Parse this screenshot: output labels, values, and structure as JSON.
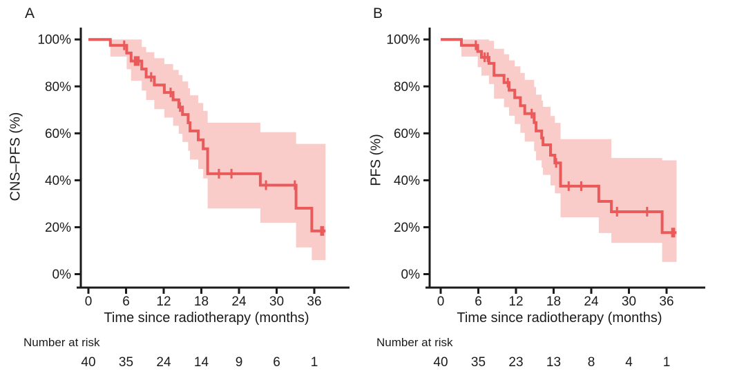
{
  "figure": {
    "background": "#ffffff",
    "panels": [
      {
        "label": "A",
        "ylabel": "CNS–PFS (%)",
        "xlabel": "Time since radiotherapy (months)",
        "risk_label": "Number at risk"
      },
      {
        "label": "B",
        "ylabel": "PFS (%)",
        "xlabel": "Time since radiotherapy (months)",
        "risk_label": "Number at risk"
      }
    ]
  },
  "chart_data": [
    {
      "type": "line",
      "subtype": "kaplan_meier_step_with_confidence_band",
      "panel": "A",
      "title": "",
      "xlabel": "Time since radiotherapy (months)",
      "ylabel": "CNS–PFS (%)",
      "xlim": [
        0,
        38
      ],
      "ylim": [
        0,
        100
      ],
      "grid": false,
      "legend": "none",
      "x_ticks": [
        0,
        6,
        12,
        18,
        24,
        30,
        36
      ],
      "y_tick_values": [
        0,
        20,
        40,
        60,
        80,
        100
      ],
      "y_tick_labels": [
        "0%",
        "20%",
        "40%",
        "60%",
        "80%",
        "100%"
      ],
      "line_color": "#e95a5b",
      "band_color": "#f9cbc9",
      "axis_color": "#1a1a1a",
      "end_time": 37.8,
      "steps": [
        {
          "t": 0,
          "s": 100,
          "lo": 100,
          "hi": 100
        },
        {
          "t": 3.5,
          "s": 97.5,
          "lo": 92.7,
          "hi": 100
        },
        {
          "t": 6.1,
          "s": 94.2,
          "lo": 87.3,
          "hi": 100
        },
        {
          "t": 6.8,
          "s": 90.8,
          "lo": 82.4,
          "hi": 100
        },
        {
          "t": 8.5,
          "s": 87.4,
          "lo": 78.2,
          "hi": 96.8
        },
        {
          "t": 9.2,
          "s": 84.0,
          "lo": 74.2,
          "hi": 94.6
        },
        {
          "t": 10.5,
          "s": 80.6,
          "lo": 70.3,
          "hi": 92.0
        },
        {
          "t": 12.1,
          "s": 77.4,
          "lo": 66.7,
          "hi": 89.5
        },
        {
          "t": 13.5,
          "s": 74.3,
          "lo": 63.2,
          "hi": 87.0
        },
        {
          "t": 14.4,
          "s": 71.2,
          "lo": 59.8,
          "hi": 84.8
        },
        {
          "t": 15.0,
          "s": 68.0,
          "lo": 56.3,
          "hi": 82.1
        },
        {
          "t": 15.9,
          "s": 64.5,
          "lo": 52.5,
          "hi": 79.2
        },
        {
          "t": 16.2,
          "s": 61.0,
          "lo": 48.8,
          "hi": 76.2
        },
        {
          "t": 17.5,
          "s": 57.2,
          "lo": 44.8,
          "hi": 72.9
        },
        {
          "t": 18.3,
          "s": 53.4,
          "lo": 40.8,
          "hi": 69.6
        },
        {
          "t": 19.0,
          "s": 42.8,
          "lo": 28.0,
          "hi": 64.5
        },
        {
          "t": 27.4,
          "s": 37.9,
          "lo": 21.9,
          "hi": 60.5
        },
        {
          "t": 33.1,
          "s": 28.1,
          "lo": 11.4,
          "hi": 55.5
        },
        {
          "t": 35.6,
          "s": 18.4,
          "lo": 6.0,
          "hi": 55.5
        }
      ],
      "censors": [
        {
          "t": 5.7,
          "s": 97.5
        },
        {
          "t": 7.4,
          "s": 90.8
        },
        {
          "t": 7.7,
          "s": 90.8
        },
        {
          "t": 8.0,
          "s": 90.8
        },
        {
          "t": 10.0,
          "s": 84.0
        },
        {
          "t": 13.1,
          "s": 77.4
        },
        {
          "t": 14.6,
          "s": 71.2
        },
        {
          "t": 20.8,
          "s": 42.8
        },
        {
          "t": 22.8,
          "s": 42.8
        },
        {
          "t": 28.3,
          "s": 37.9
        },
        {
          "t": 32.9,
          "s": 37.9
        },
        {
          "t": 37.1,
          "s": 18.4
        },
        {
          "t": 37.4,
          "s": 18.4
        }
      ],
      "risk_label": "Number at risk",
      "number_at_risk": {
        "times": [
          0,
          6,
          12,
          18,
          24,
          30,
          36
        ],
        "counts": [
          40,
          35,
          24,
          14,
          9,
          6,
          1
        ]
      }
    },
    {
      "type": "line",
      "subtype": "kaplan_meier_step_with_confidence_band",
      "panel": "B",
      "title": "",
      "xlabel": "Time since radiotherapy (months)",
      "ylabel": "PFS (%)",
      "xlim": [
        0,
        38
      ],
      "ylim": [
        0,
        100
      ],
      "grid": false,
      "legend": "none",
      "x_ticks": [
        0,
        6,
        12,
        18,
        24,
        30,
        36
      ],
      "y_tick_values": [
        0,
        20,
        40,
        60,
        80,
        100
      ],
      "y_tick_labels": [
        "0%",
        "20%",
        "40%",
        "60%",
        "80%",
        "100%"
      ],
      "line_color": "#e95a5b",
      "band_color": "#f9cbc9",
      "axis_color": "#1a1a1a",
      "end_time": 37.6,
      "steps": [
        {
          "t": 0,
          "s": 100,
          "lo": 100,
          "hi": 100
        },
        {
          "t": 3.3,
          "s": 97.5,
          "lo": 92.7,
          "hi": 100
        },
        {
          "t": 5.9,
          "s": 94.9,
          "lo": 88.2,
          "hi": 100
        },
        {
          "t": 6.5,
          "s": 92.4,
          "lo": 84.6,
          "hi": 100
        },
        {
          "t": 7.7,
          "s": 89.8,
          "lo": 81.0,
          "hi": 99.4
        },
        {
          "t": 8.5,
          "s": 84.7,
          "lo": 74.8,
          "hi": 96.0
        },
        {
          "t": 10.1,
          "s": 81.6,
          "lo": 71.1,
          "hi": 93.7
        },
        {
          "t": 10.9,
          "s": 78.4,
          "lo": 67.5,
          "hi": 91.1
        },
        {
          "t": 11.8,
          "s": 75.2,
          "lo": 64.0,
          "hi": 88.5
        },
        {
          "t": 12.7,
          "s": 71.8,
          "lo": 60.2,
          "hi": 85.7
        },
        {
          "t": 13.4,
          "s": 68.4,
          "lo": 56.5,
          "hi": 82.8
        },
        {
          "t": 14.9,
          "s": 64.6,
          "lo": 52.4,
          "hi": 79.7
        },
        {
          "t": 15.2,
          "s": 61.0,
          "lo": 48.5,
          "hi": 76.5
        },
        {
          "t": 16.1,
          "s": 58.0,
          "lo": 45.4,
          "hi": 73.9
        },
        {
          "t": 16.3,
          "s": 55.1,
          "lo": 42.3,
          "hi": 71.3
        },
        {
          "t": 17.5,
          "s": 50.7,
          "lo": 37.8,
          "hi": 67.4
        },
        {
          "t": 18.2,
          "s": 47.4,
          "lo": 34.4,
          "hi": 64.4
        },
        {
          "t": 19.1,
          "s": 37.5,
          "lo": 24.2,
          "hi": 57.5
        },
        {
          "t": 25.2,
          "s": 31.0,
          "lo": 17.5,
          "hi": 57.5
        },
        {
          "t": 27.2,
          "s": 26.6,
          "lo": 13.3,
          "hi": 49.5
        },
        {
          "t": 35.3,
          "s": 17.7,
          "lo": 5.2,
          "hi": 48.5
        }
      ],
      "censors": [
        {
          "t": 5.6,
          "s": 97.5
        },
        {
          "t": 7.0,
          "s": 92.4
        },
        {
          "t": 7.5,
          "s": 92.4
        },
        {
          "t": 10.7,
          "s": 81.6
        },
        {
          "t": 14.5,
          "s": 68.4
        },
        {
          "t": 18.4,
          "s": 47.4
        },
        {
          "t": 20.4,
          "s": 37.5
        },
        {
          "t": 22.4,
          "s": 37.5
        },
        {
          "t": 28.1,
          "s": 26.6
        },
        {
          "t": 32.9,
          "s": 26.6
        },
        {
          "t": 36.9,
          "s": 17.7
        },
        {
          "t": 37.2,
          "s": 17.7
        }
      ],
      "risk_label": "Number at risk",
      "number_at_risk": {
        "times": [
          0,
          6,
          12,
          18,
          24,
          30,
          36
        ],
        "counts": [
          40,
          35,
          23,
          13,
          8,
          4,
          1
        ]
      }
    }
  ]
}
